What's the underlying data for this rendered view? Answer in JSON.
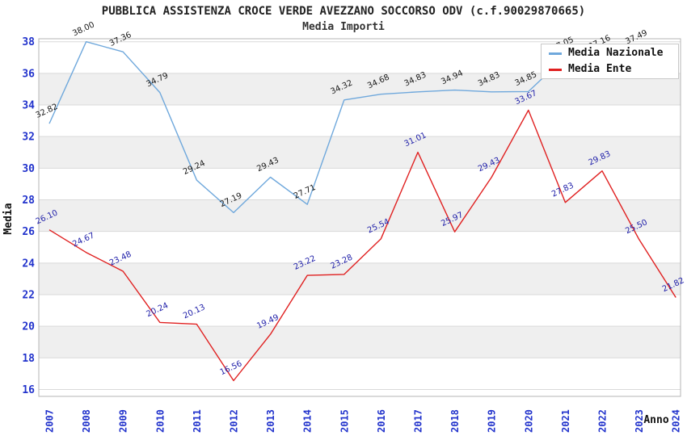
{
  "header": {
    "title": "PUBBLICA ASSISTENZA CROCE VERDE AVEZZANO SOCCORSO ODV (c.f.90029870665)",
    "subtitle": "Media Importi"
  },
  "legend": {
    "items": [
      {
        "label": "Media Nazionale",
        "color": "#6fa8dc"
      },
      {
        "label": "Media Ente",
        "color": "#e02020"
      }
    ]
  },
  "chart_data": {
    "type": "line",
    "title": "PUBBLICA ASSISTENZA CROCE VERDE AVEZZANO SOCCORSO ODV (c.f.90029870665)",
    "subtitle": "Media Importi",
    "xlabel": "Anno",
    "ylabel": "Media",
    "ylim": [
      16,
      38
    ],
    "ytick_step": 2,
    "grid": true,
    "alternating_bands": true,
    "legend_position": "top-right",
    "x": [
      2007,
      2008,
      2009,
      2010,
      2011,
      2012,
      2013,
      2014,
      2015,
      2016,
      2017,
      2018,
      2019,
      2020,
      2021,
      2022,
      2023,
      2024
    ],
    "series": [
      {
        "name": "Media Nazionale",
        "color": "#6fa8dc",
        "label_color": "#1a1a1a",
        "values": [
          32.82,
          38.0,
          37.36,
          34.79,
          29.24,
          27.19,
          29.43,
          27.71,
          34.32,
          34.68,
          34.83,
          34.94,
          34.83,
          34.85,
          37.05,
          37.16,
          37.49,
          null
        ]
      },
      {
        "name": "Media Ente",
        "color": "#e02020",
        "label_color": "#2222aa",
        "values": [
          26.1,
          24.67,
          23.48,
          20.24,
          20.13,
          16.56,
          19.49,
          23.22,
          23.28,
          25.54,
          31.01,
          25.97,
          29.43,
          33.67,
          27.83,
          29.83,
          25.5,
          21.82
        ]
      }
    ],
    "colors": {
      "band_fill": "#efefef",
      "gridline": "#d9d9d9",
      "plot_border": "#b5b5b5",
      "tick_label": "#2233cc",
      "axis_title": "#111111"
    }
  }
}
